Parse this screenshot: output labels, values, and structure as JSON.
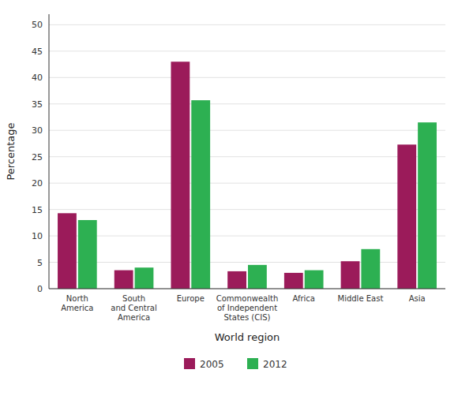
{
  "chart_data": {
    "type": "bar",
    "categories": [
      "North\nAmerica",
      "South\nand Central\nAmerica",
      "Europe",
      "Commonwealth\nof Independent\nStates (CIS)",
      "Africa",
      "Middle East",
      "Asia"
    ],
    "series": [
      {
        "name": "2005",
        "color": "#9B1B5A",
        "values": [
          14.3,
          3.5,
          43.0,
          3.3,
          3.0,
          5.2,
          27.3
        ]
      },
      {
        "name": "2012",
        "color": "#2DB052",
        "values": [
          13.0,
          4.0,
          35.7,
          4.5,
          3.5,
          7.5,
          31.5
        ]
      }
    ],
    "xlabel": "World region",
    "ylabel": "Percentage",
    "ylim": [
      0,
      52
    ],
    "yticks": [
      0,
      5,
      10,
      15,
      20,
      25,
      30,
      35,
      40,
      45,
      50
    ],
    "grid": true,
    "legend": "bottom"
  }
}
